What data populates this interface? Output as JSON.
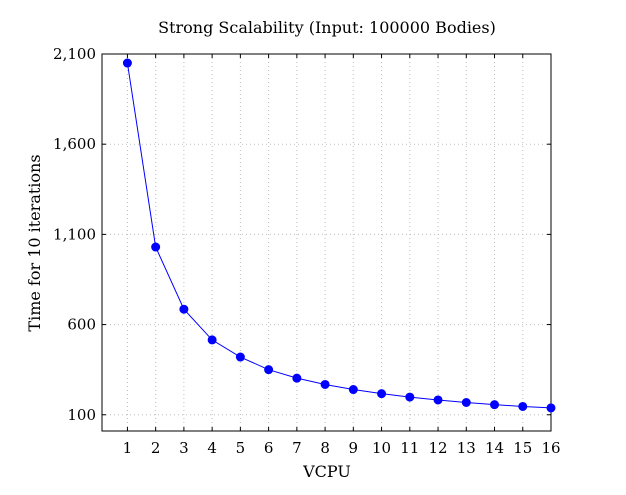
{
  "chart_data": {
    "type": "line",
    "title": "Strong Scalability (Input: 100000 Bodies)",
    "xlabel": "VCPU",
    "ylabel": "Time for 10 iterations",
    "x": [
      1,
      2,
      3,
      4,
      5,
      6,
      7,
      8,
      9,
      10,
      11,
      12,
      13,
      14,
      15,
      16
    ],
    "series": [
      {
        "name": "Time",
        "color": "#0000ff",
        "values": [
          2050,
          1030,
          685,
          515,
          420,
          350,
          303,
          268,
          240,
          217,
          198,
          182,
          168,
          156,
          146,
          138
        ]
      }
    ],
    "xlim": [
      0.1,
      16
    ],
    "ylim": [
      10,
      2100
    ],
    "xticks": [
      1,
      2,
      3,
      4,
      5,
      6,
      7,
      8,
      9,
      10,
      11,
      12,
      13,
      14,
      15,
      16
    ],
    "yticks": [
      100,
      600,
      1100,
      1600,
      2100
    ],
    "ytick_labels": [
      "100",
      "600",
      "1,100",
      "1,600",
      "2,100"
    ],
    "grid": true
  }
}
